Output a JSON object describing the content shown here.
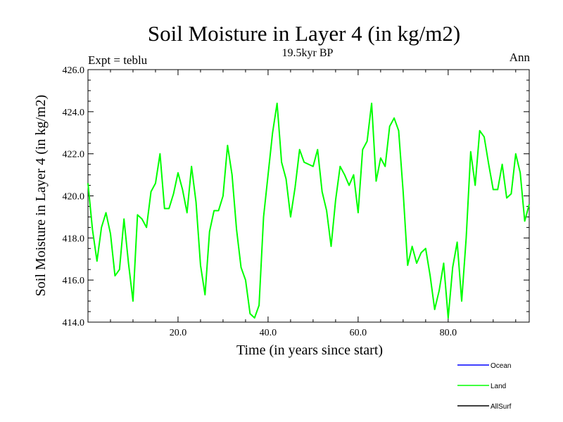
{
  "chart_data": {
    "type": "line",
    "title": "Soil Moisture in Layer 4 (in kg/m2)",
    "subtitle": "19.5kyr BP",
    "left_label": "Expt = teblu",
    "right_label": "Ann",
    "xlabel": "Time (in years since start)",
    "ylabel": "Soil Moisture in Layer 4 (in kg/m2)",
    "xlim": [
      0,
      98
    ],
    "ylim": [
      414.0,
      426.0
    ],
    "x_ticks": [
      20,
      40,
      60,
      80
    ],
    "x_tick_labels": [
      "20.0",
      "40.0",
      "60.0",
      "80.0"
    ],
    "y_ticks": [
      414,
      416,
      418,
      420,
      422,
      424,
      426
    ],
    "y_tick_labels": [
      "414.0",
      "416.0",
      "418.0",
      "420.0",
      "422.0",
      "424.0",
      "426.0"
    ],
    "grid": false,
    "legend_placement": "bottom-right",
    "series": [
      {
        "name": "Ocean",
        "color": "#0000ff",
        "values": []
      },
      {
        "name": "Land",
        "color": "#00ff00",
        "x_start": 0,
        "x_step": 1,
        "values": [
          420.6,
          418.4,
          416.9,
          418.5,
          419.2,
          418.2,
          416.2,
          416.5,
          418.9,
          416.8,
          415.0,
          419.1,
          418.9,
          418.5,
          420.2,
          420.6,
          422.0,
          419.4,
          419.4,
          420.1,
          421.1,
          420.3,
          419.2,
          421.4,
          419.7,
          416.7,
          415.3,
          418.3,
          419.3,
          419.3,
          420.0,
          422.4,
          421.0,
          418.4,
          416.6,
          416.0,
          414.4,
          414.2,
          414.8,
          419.0,
          421.0,
          423.0,
          424.4,
          421.6,
          420.8,
          419.0,
          420.4,
          422.2,
          421.6,
          421.5,
          421.4,
          422.2,
          420.2,
          419.3,
          417.6,
          419.8,
          421.4,
          421.0,
          420.5,
          421.0,
          419.2,
          422.2,
          422.6,
          424.4,
          420.7,
          421.8,
          421.4,
          423.3,
          423.7,
          423.1,
          420.2,
          416.7,
          417.6,
          416.8,
          417.3,
          417.5,
          416.2,
          414.6,
          415.5,
          416.8,
          414.2,
          416.6,
          417.8,
          415.0,
          418.0,
          422.1,
          420.5,
          423.1,
          422.8,
          421.5,
          420.3,
          420.3,
          421.5,
          419.9,
          420.1,
          422.0,
          421.1,
          418.8,
          419.6
        ]
      },
      {
        "name": "AllSurf",
        "color": "#000000",
        "values": []
      }
    ]
  }
}
